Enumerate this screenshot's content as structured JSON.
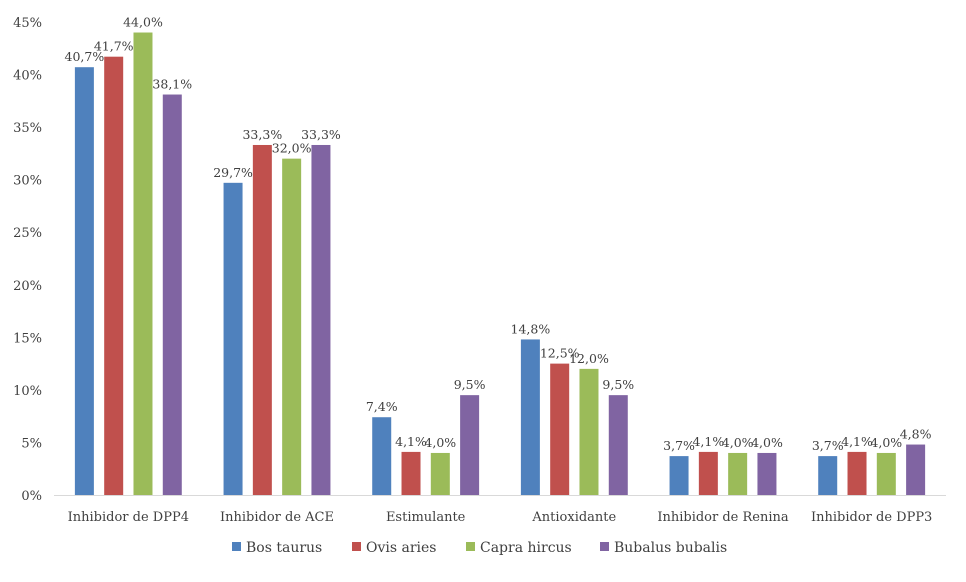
{
  "chart_data": {
    "type": "bar",
    "categories": [
      "Inhibidor de DPP4",
      "Inhibidor de ACE",
      "Estimulante",
      "Antioxidante",
      "Inhibidor de Renina",
      "Inhibidor de DPP3"
    ],
    "series": [
      {
        "name": "Bos taurus",
        "color": "#4F81BD",
        "values": [
          40.7,
          29.7,
          7.4,
          14.8,
          3.7,
          3.7
        ],
        "labels": [
          "40,7%",
          "29,7%",
          "7,4%",
          "14,8%",
          "3,7%",
          "3,7%"
        ]
      },
      {
        "name": "Ovis aries",
        "color": "#C0504D",
        "values": [
          41.7,
          33.3,
          4.1,
          12.5,
          4.1,
          4.1
        ],
        "labels": [
          "41,7%",
          "33,3%",
          "4,1%",
          "12,5%",
          "4,1%",
          "4,1%"
        ]
      },
      {
        "name": "Capra hircus",
        "color": "#9BBB59",
        "values": [
          44.0,
          32.0,
          4.0,
          12.0,
          4.0,
          4.0
        ],
        "labels": [
          "44,0%",
          "32,0%",
          "4,0%",
          "12,0%",
          "4,0%",
          "4,0%"
        ]
      },
      {
        "name": "Bubalus bubalis",
        "color": "#8064A2",
        "values": [
          38.1,
          33.3,
          9.5,
          9.5,
          4.0,
          4.8
        ],
        "labels": [
          "38,1%",
          "33,3%",
          "9,5%",
          "9,5%",
          "4,0%",
          "4,8%"
        ]
      }
    ],
    "y_ticks": [
      "0%",
      "5%",
      "10%",
      "15%",
      "20%",
      "25%",
      "30%",
      "35%",
      "40%",
      "45%"
    ],
    "ylim": [
      0,
      45
    ],
    "grid": false,
    "legend_position": "bottom"
  }
}
